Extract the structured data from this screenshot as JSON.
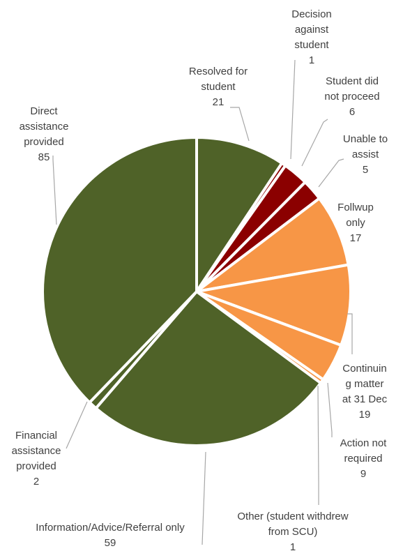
{
  "chart_data": {
    "type": "pie",
    "title": "",
    "colors": {
      "green": "#4f6228",
      "darkred": "#8b0000",
      "orange": "#f79646"
    },
    "slices": [
      {
        "label": "Resolved for student",
        "value": 21,
        "color": "#4f6228",
        "label_lines": [
          "Resolved for",
          "student",
          "21"
        ]
      },
      {
        "label": "Decision against student",
        "value": 1,
        "color": "#8b0000",
        "label_lines": [
          "Decision",
          "against",
          "student",
          "1"
        ]
      },
      {
        "label": "Student did not proceed",
        "value": 6,
        "color": "#8b0000",
        "label_lines": [
          "Student did",
          "not proceed",
          "6"
        ]
      },
      {
        "label": "Unable to assist",
        "value": 5,
        "color": "#8b0000",
        "label_lines": [
          "Unable to",
          "assist",
          "5"
        ]
      },
      {
        "label": "Follwup only",
        "value": 17,
        "color": "#f79646",
        "label_lines": [
          "Follwup",
          "only",
          "17"
        ]
      },
      {
        "label": "Continuing matter at 31 Dec",
        "value": 19,
        "color": "#f79646",
        "label_lines": [
          "Continuin",
          "g matter",
          "at 31 Dec",
          "19"
        ]
      },
      {
        "label": "Action not required",
        "value": 9,
        "color": "#f79646",
        "label_lines": [
          "Action not",
          "required",
          "9"
        ]
      },
      {
        "label": "Other (student withdrew from SCU)",
        "value": 1,
        "color": "#f79646",
        "label_lines": [
          "Other (student withdrew",
          "from SCU)",
          "1"
        ]
      },
      {
        "label": "Information/Advice/Referral only",
        "value": 59,
        "color": "#4f6228",
        "label_lines": [
          "Information/Advice/Referral only",
          "59"
        ]
      },
      {
        "label": "Financial assistance provided",
        "value": 2,
        "color": "#4f6228",
        "label_lines": [
          "Financial",
          "assistance",
          "provided",
          "2"
        ]
      },
      {
        "label": "Direct assistance provided",
        "value": 85,
        "color": "#4f6228",
        "label_lines": [
          "Direct",
          "assistance",
          "provided",
          "85"
        ]
      }
    ]
  }
}
